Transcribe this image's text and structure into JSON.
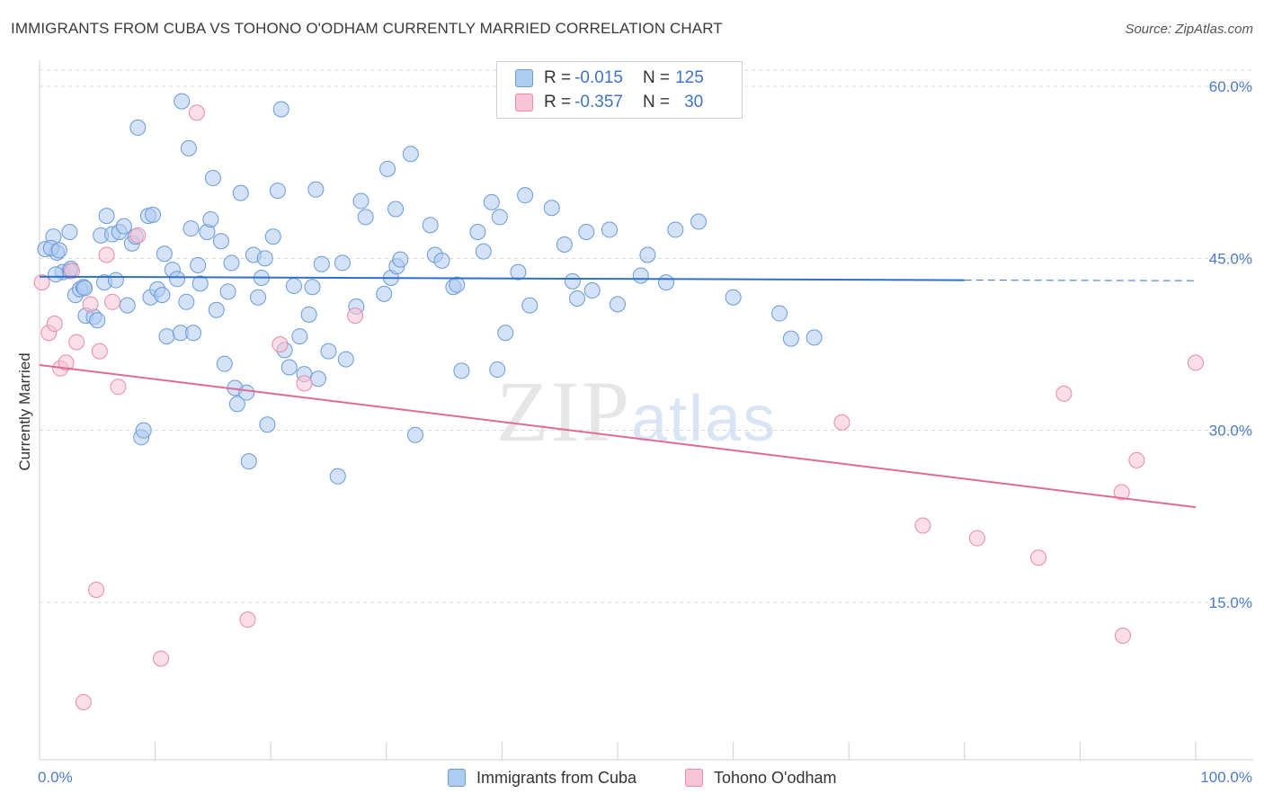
{
  "title": "IMMIGRANTS FROM CUBA VS TOHONO O'ODHAM CURRENTLY MARRIED CORRELATION CHART",
  "source": "Source: ZipAtlas.com",
  "watermark": {
    "zip": "ZIP",
    "atlas": "atlas"
  },
  "legend": {
    "rows": [
      {
        "r_label": "R = ",
        "r_value": "-0.015",
        "n_label": "N = ",
        "n_value": "125"
      },
      {
        "r_label": "R = ",
        "r_value": "-0.357",
        "n_label": "N = ",
        "n_value": "30"
      }
    ]
  },
  "colors": {
    "cuba_fill": "#aecbf0",
    "cuba_stroke": "#6a9ad8",
    "cuba_line": "#2f6fcc",
    "tohono_fill": "#f8c3d4",
    "tohono_stroke": "#e98aa9",
    "tohono_line": "#e06a96",
    "grid": "#d8d8d8",
    "axis_label": "#4a7cc7"
  },
  "chart_data": {
    "type": "scatter",
    "title": "IMMIGRANTS FROM CUBA VS TOHONO O'ODHAM CURRENTLY MARRIED CORRELATION CHART",
    "xlabel": "",
    "ylabel": "Currently Married",
    "xlim": [
      0,
      100
    ],
    "ylim": [
      0,
      65
    ],
    "x_tick_labels": [
      "0.0%",
      "100.0%"
    ],
    "y_ticks": [
      15,
      30,
      45,
      60
    ],
    "y_tick_labels": [
      "15.0%",
      "30.0%",
      "45.0%",
      "60.0%"
    ],
    "legend_position": "top-center",
    "series": [
      {
        "name": "Immigrants from Cuba",
        "R": -0.015,
        "N": 125,
        "trend": {
          "x0": 0,
          "y0": 43.4,
          "x1": 80,
          "y1": 43.1,
          "dashed_to_x": 100
        },
        "points": [
          [
            0.5,
            45.8
          ],
          [
            1.2,
            46.9
          ],
          [
            1.5,
            45.5
          ],
          [
            1.0,
            45.9
          ],
          [
            1.7,
            45.7
          ],
          [
            2.0,
            43.8
          ],
          [
            2.6,
            43.9
          ],
          [
            2.7,
            44.1
          ],
          [
            2.6,
            47.3
          ],
          [
            3.1,
            41.8
          ],
          [
            3.5,
            42.3
          ],
          [
            3.8,
            42.5
          ],
          [
            3.9,
            42.4
          ],
          [
            4.0,
            40.0
          ],
          [
            4.7,
            39.9
          ],
          [
            5.0,
            39.6
          ],
          [
            5.3,
            47.0
          ],
          [
            5.6,
            42.9
          ],
          [
            5.8,
            48.7
          ],
          [
            6.3,
            47.1
          ],
          [
            6.6,
            43.1
          ],
          [
            6.9,
            47.3
          ],
          [
            7.3,
            47.8
          ],
          [
            7.6,
            40.9
          ],
          [
            8.0,
            46.3
          ],
          [
            8.3,
            46.9
          ],
          [
            8.5,
            56.4
          ],
          [
            8.8,
            29.4
          ],
          [
            9.0,
            30.0
          ],
          [
            9.4,
            48.7
          ],
          [
            9.6,
            41.6
          ],
          [
            9.8,
            48.8
          ],
          [
            10.2,
            42.3
          ],
          [
            10.6,
            41.8
          ],
          [
            10.8,
            45.4
          ],
          [
            11.0,
            38.2
          ],
          [
            11.5,
            44.0
          ],
          [
            11.9,
            43.2
          ],
          [
            12.2,
            38.5
          ],
          [
            12.3,
            58.7
          ],
          [
            12.7,
            41.2
          ],
          [
            13.1,
            47.6
          ],
          [
            13.3,
            38.5
          ],
          [
            13.7,
            44.4
          ],
          [
            13.9,
            42.8
          ],
          [
            14.5,
            47.3
          ],
          [
            14.8,
            48.4
          ],
          [
            15.0,
            52.0
          ],
          [
            15.3,
            40.5
          ],
          [
            15.7,
            46.5
          ],
          [
            16.0,
            35.8
          ],
          [
            16.3,
            42.1
          ],
          [
            16.6,
            44.6
          ],
          [
            16.9,
            33.7
          ],
          [
            17.1,
            32.3
          ],
          [
            17.4,
            50.7
          ],
          [
            17.9,
            33.3
          ],
          [
            18.1,
            27.3
          ],
          [
            18.5,
            45.3
          ],
          [
            18.9,
            41.6
          ],
          [
            19.2,
            43.3
          ],
          [
            19.5,
            45.0
          ],
          [
            19.7,
            30.5
          ],
          [
            20.2,
            46.9
          ],
          [
            20.6,
            50.9
          ],
          [
            20.9,
            58.0
          ],
          [
            21.2,
            37.0
          ],
          [
            21.6,
            35.5
          ],
          [
            22.0,
            42.6
          ],
          [
            22.5,
            38.2
          ],
          [
            22.9,
            34.9
          ],
          [
            23.3,
            40.1
          ],
          [
            23.6,
            42.5
          ],
          [
            23.9,
            51.0
          ],
          [
            24.1,
            34.5
          ],
          [
            24.4,
            44.5
          ],
          [
            25.0,
            36.9
          ],
          [
            25.8,
            26.0
          ],
          [
            26.2,
            44.6
          ],
          [
            26.5,
            36.2
          ],
          [
            27.4,
            40.8
          ],
          [
            27.8,
            50.0
          ],
          [
            28.2,
            48.6
          ],
          [
            29.8,
            41.9
          ],
          [
            30.1,
            52.8
          ],
          [
            30.4,
            43.3
          ],
          [
            30.8,
            49.3
          ],
          [
            30.9,
            44.3
          ],
          [
            31.2,
            44.9
          ],
          [
            32.1,
            54.1
          ],
          [
            32.5,
            29.6
          ],
          [
            33.8,
            47.9
          ],
          [
            34.2,
            45.3
          ],
          [
            34.8,
            44.8
          ],
          [
            35.8,
            42.5
          ],
          [
            36.1,
            42.7
          ],
          [
            36.5,
            35.2
          ],
          [
            37.9,
            47.3
          ],
          [
            38.4,
            45.6
          ],
          [
            39.1,
            49.9
          ],
          [
            39.6,
            35.3
          ],
          [
            39.8,
            48.6
          ],
          [
            40.3,
            38.5
          ],
          [
            41.4,
            43.8
          ],
          [
            42.0,
            50.5
          ],
          [
            42.4,
            40.9
          ],
          [
            44.3,
            49.4
          ],
          [
            45.4,
            46.2
          ],
          [
            46.1,
            43.0
          ],
          [
            46.5,
            41.5
          ],
          [
            47.3,
            47.3
          ],
          [
            47.8,
            42.2
          ],
          [
            49.3,
            47.5
          ],
          [
            50.0,
            41.0
          ],
          [
            52.0,
            43.5
          ],
          [
            52.6,
            45.3
          ],
          [
            54.2,
            42.9
          ],
          [
            55.0,
            47.5
          ],
          [
            57.0,
            48.2
          ],
          [
            60.0,
            41.6
          ],
          [
            64.0,
            40.2
          ],
          [
            65.0,
            38.0
          ],
          [
            67.0,
            38.1
          ],
          [
            1.4,
            43.6
          ],
          [
            12.9,
            54.6
          ]
        ]
      },
      {
        "name": "Tohono O'odham",
        "R": -0.357,
        "N": 30,
        "trend": {
          "x0": 0,
          "y0": 35.7,
          "x1": 100,
          "y1": 23.3
        },
        "points": [
          [
            0.2,
            42.9
          ],
          [
            0.8,
            38.5
          ],
          [
            1.3,
            39.3
          ],
          [
            1.8,
            35.4
          ],
          [
            2.3,
            35.9
          ],
          [
            2.8,
            43.9
          ],
          [
            3.2,
            37.7
          ],
          [
            3.8,
            6.3
          ],
          [
            4.4,
            41.0
          ],
          [
            4.9,
            16.1
          ],
          [
            5.2,
            36.9
          ],
          [
            5.8,
            45.3
          ],
          [
            6.3,
            41.2
          ],
          [
            6.8,
            33.8
          ],
          [
            8.5,
            47.0
          ],
          [
            10.5,
            10.1
          ],
          [
            13.6,
            57.7
          ],
          [
            18.0,
            13.5
          ],
          [
            20.8,
            37.5
          ],
          [
            22.9,
            34.1
          ],
          [
            27.3,
            40.0
          ],
          [
            69.4,
            30.7
          ],
          [
            76.4,
            21.7
          ],
          [
            81.1,
            20.6
          ],
          [
            86.4,
            18.9
          ],
          [
            88.6,
            33.2
          ],
          [
            93.6,
            24.6
          ],
          [
            93.7,
            12.1
          ],
          [
            94.9,
            27.4
          ],
          [
            100.0,
            35.9
          ]
        ]
      }
    ]
  },
  "bottom_legend": [
    {
      "label": "Immigrants from Cuba"
    },
    {
      "label": "Tohono O'odham"
    }
  ]
}
